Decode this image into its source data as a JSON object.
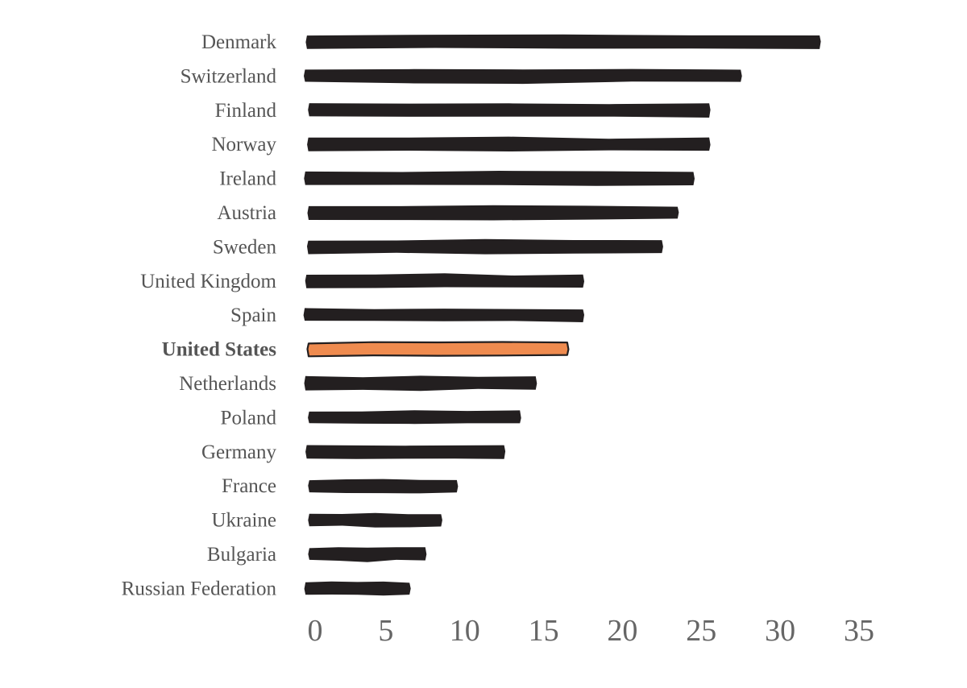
{
  "chart_data": {
    "type": "bar",
    "orientation": "horizontal",
    "title": "",
    "xlabel": "",
    "ylabel": "",
    "categories": [
      "Denmark",
      "Switzerland",
      "Finland",
      "Norway",
      "Ireland",
      "Austria",
      "Sweden",
      "United Kingdom",
      "Spain",
      "United States",
      "Netherlands",
      "Poland",
      "Germany",
      "France",
      "Ukraine",
      "Bulgaria",
      "Russian Federation"
    ],
    "values": [
      32.5,
      27.5,
      25.5,
      25.5,
      24.5,
      23.5,
      22.5,
      17.5,
      17.5,
      16.5,
      14.5,
      13.5,
      12.5,
      9.5,
      8.5,
      7.5,
      6.5
    ],
    "highlight": "United States",
    "xlim": [
      0,
      35
    ],
    "xticks": [
      0,
      5,
      10,
      15,
      20,
      25,
      30,
      35
    ],
    "grid": false,
    "legend": "none",
    "colors": {
      "bar": "#231f20",
      "highlight": "#ef8b4f",
      "highlight_outline": "#231f20",
      "label": "#555555",
      "tick": "#666666"
    }
  }
}
